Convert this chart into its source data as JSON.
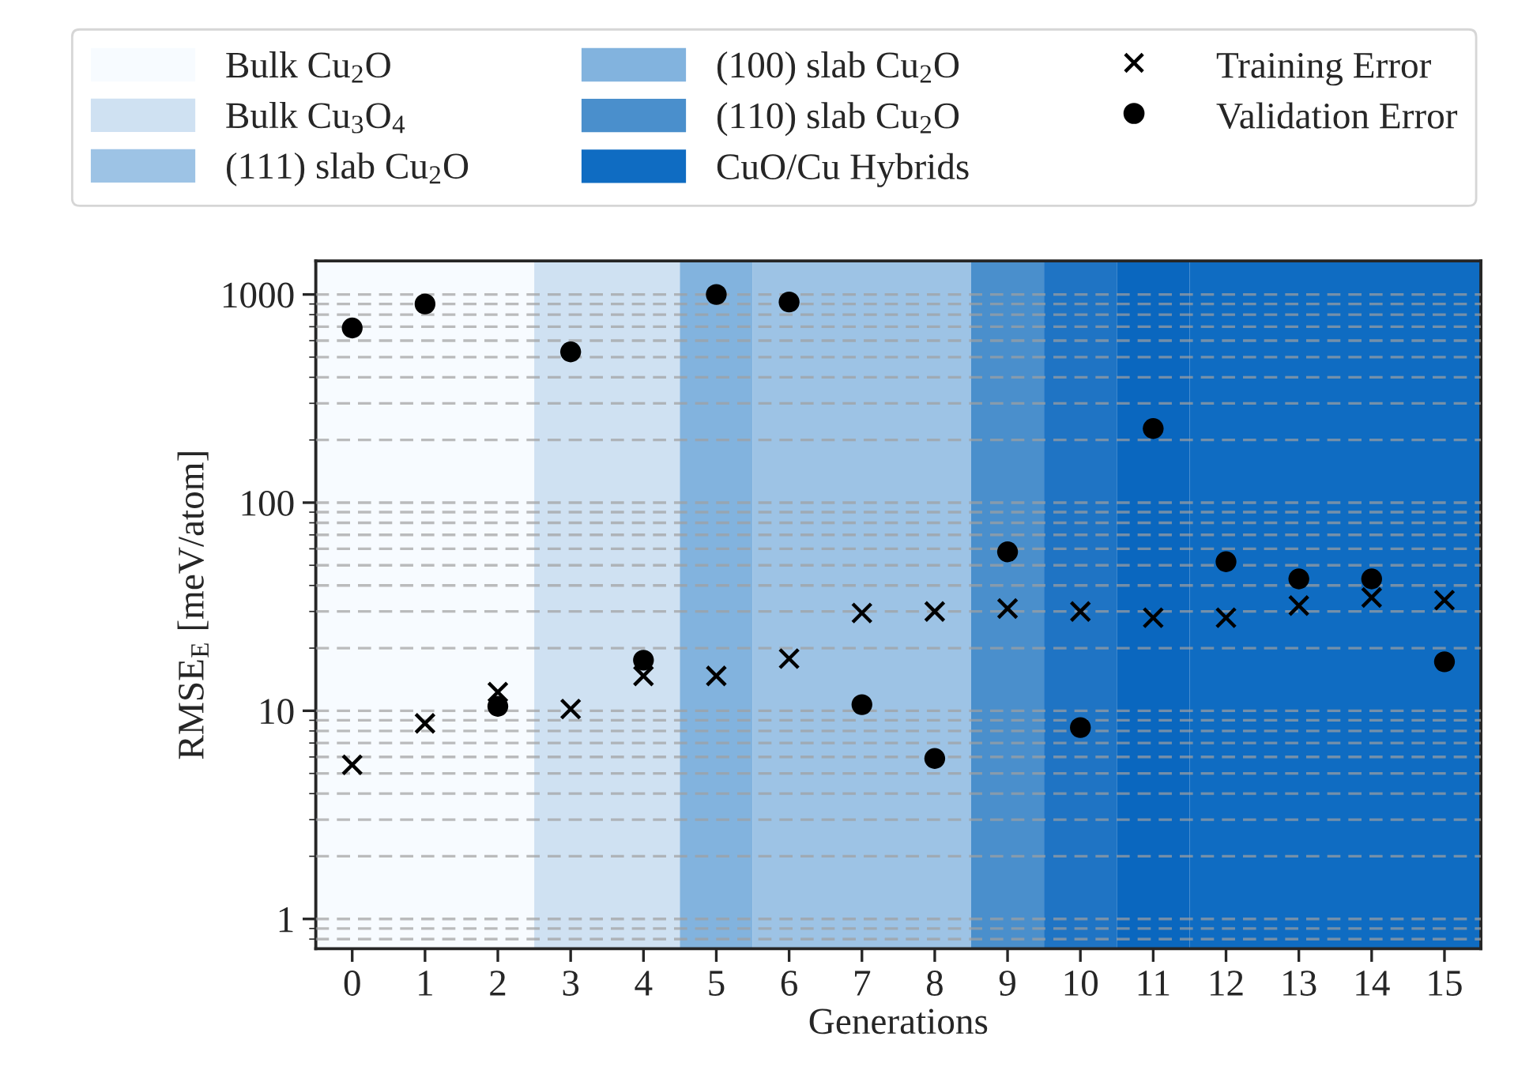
{
  "chart_data": {
    "type": "scatter",
    "xlabel": "Generations",
    "ylabel": "RMSE$_{E}$ [meV/atom]",
    "categories": [
      "0",
      "1",
      "2",
      "3",
      "4",
      "5",
      "6",
      "7",
      "8",
      "9",
      "10",
      "11",
      "12",
      "13",
      "14",
      "15"
    ],
    "series": [
      {
        "name": "Training Error",
        "color": "#000000",
        "marker": "cross",
        "values": [
          5.5,
          8.7,
          12.3,
          10.2,
          14.7,
          14.7,
          17.8,
          29.5,
          30,
          31,
          30,
          28,
          28,
          32,
          35,
          34
        ]
      },
      {
        "name": "Validation Error",
        "color": "#000000",
        "marker": "circle",
        "values": [
          690,
          900,
          10.5,
          530,
          17.5,
          1000,
          920,
          10.7,
          5.9,
          58,
          8.3,
          227,
          52,
          43,
          43,
          17.2
        ]
      }
    ],
    "log": "y",
    "ylim": [
      0.72,
      1450
    ],
    "yticks": [
      1,
      10,
      100,
      1000
    ],
    "grid": "y",
    "legend": "top",
    "bands": [
      {
        "axis": "x",
        "from": "0",
        "to": "2",
        "label": "Bulk Cu$_{2}$O",
        "color": "#f7fbff"
      },
      {
        "axis": "x",
        "from": "3",
        "to": "4",
        "label": "Bulk Cu$_{3}$O$_{4}$",
        "color": "#cfe1f2"
      },
      {
        "axis": "x",
        "from": "6",
        "to": "8",
        "label": "(111) slab Cu$_{2}$O",
        "color": "#9dc3e5"
      },
      {
        "axis": "x",
        "from": "5",
        "to": "5",
        "label": "(100) slab Cu$_{2}$O",
        "color": "#82b3de"
      },
      {
        "axis": "x",
        "from": "9",
        "to": "9",
        "label": "(110) slab Cu$_{2}$O",
        "color": "#4a8fcc"
      },
      {
        "axis": "x",
        "from": "12",
        "to": "15",
        "label": "CuO/Cu Hybrids",
        "color": "#0f6cc2"
      },
      {
        "axis": "x",
        "from": "10",
        "to": "10",
        "label": null,
        "color": "#1f74c4"
      },
      {
        "axis": "x",
        "from": "11",
        "to": "11",
        "label": null,
        "color": "#0a67bf"
      }
    ]
  }
}
